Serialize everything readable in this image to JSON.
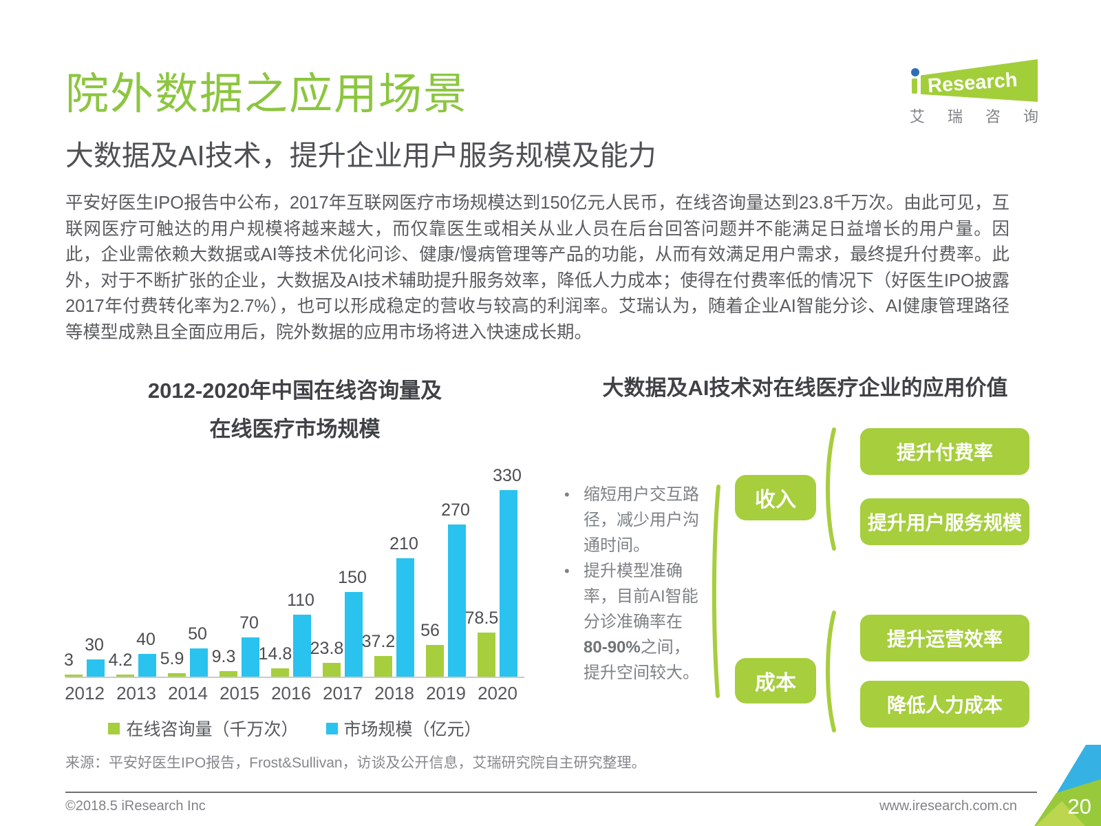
{
  "header": {
    "title": "院外数据之应用场景",
    "subtitle": "大数据及AI技术，提升企业用户服务规模及能力",
    "paragraph": "平安好医生IPO报告中公布，2017年互联网医疗市场规模达到150亿元人民币，在线咨询量达到23.8千万次。由此可见，互联网医疗可触达的用户规模将越来越大，而仅靠医生或相关从业人员在后台回答问题并不能满足日益增长的用户量。因此，企业需依赖大数据或AI等技术优化问诊、健康/慢病管理等产品的功能，从而有效满足用户需求，最终提升付费率。此外，对于不断扩张的企业，大数据及AI技术辅助提升服务效率，降低人力成本；使得在付费率低的情况下（好医生IPO披露2017年付费转化率为2.7%），也可以形成稳定的营收与较高的利润率。艾瑞认为，随着企业AI智能分诊、AI健康管理路径等模型成熟且全面应用后，院外数据的应用市场将进入快速成长期。"
  },
  "logo": {
    "i": "i",
    "rest": "Research",
    "cn": "艾瑞咨询"
  },
  "chart_data": {
    "type": "bar",
    "title": "2012-2020年中国在线咨询量及在线医疗市场规模",
    "title_lines": [
      "2012-2020年中国在线咨询量及",
      "在线医疗市场规模"
    ],
    "categories": [
      "2012",
      "2013",
      "2014",
      "2015",
      "2016",
      "2017",
      "2018",
      "2019",
      "2020"
    ],
    "series": [
      {
        "name": "在线咨询量（千万次）",
        "color": "#a6ce3d",
        "values": [
          3,
          4.2,
          5.9,
          9.3,
          14.8,
          23.8,
          37.2,
          56,
          78.5
        ]
      },
      {
        "name": "市场规模（亿元）",
        "color": "#2ac2ee",
        "values": [
          30,
          40,
          50,
          70,
          110,
          150,
          210,
          270,
          330
        ]
      }
    ],
    "ylim": [
      0,
      330
    ],
    "grid": false,
    "legend_position": "bottom",
    "value_labels": true
  },
  "diagram": {
    "title": "大数据及AI技术对在线医疗企业的应用价值",
    "accent_color": "#a6ce3d",
    "bullets": [
      {
        "pre": "缩短用户交互路径，减少用户沟通时间。",
        "bold": "",
        "post": ""
      },
      {
        "pre": "提升模型准确率，目前AI智能分诊准确率在",
        "bold": "80-90%",
        "post": "之间，提升空间较大。"
      }
    ],
    "groups": [
      {
        "label": "收入",
        "items": [
          "提升付费率",
          "提升用户服务规模"
        ]
      },
      {
        "label": "成本",
        "items": [
          "提升运营效率",
          "降低人力成本"
        ]
      }
    ]
  },
  "source": "来源：平安好医生IPO报告，Frost&Sullivan，访谈及公开信息，艾瑞研究院自主研究整理。",
  "footer": {
    "copyright": "©2018.5 iResearch Inc",
    "website": "www.iresearch.com.cn",
    "page_number": "20"
  }
}
